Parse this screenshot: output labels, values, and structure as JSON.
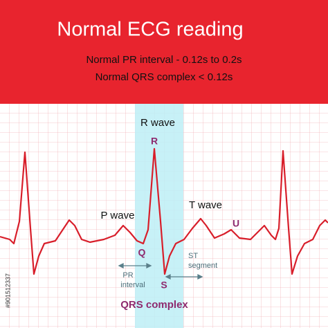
{
  "header": {
    "title": "Normal ECG reading",
    "lines": [
      "Normal PR interval - 0.12s to 0.2s",
      "Normal QRS complex < 0.12s"
    ]
  },
  "labels": {
    "r_wave": "R wave",
    "r": "R",
    "p_wave": "P wave",
    "t_wave": "T wave",
    "u": "U",
    "q": "Q",
    "s": "S",
    "pr_interval": [
      "PR",
      "interval"
    ],
    "st_segment": [
      "ST",
      "segment"
    ],
    "qrs_complex": "QRS complex"
  },
  "stock_id": "#901512337"
}
